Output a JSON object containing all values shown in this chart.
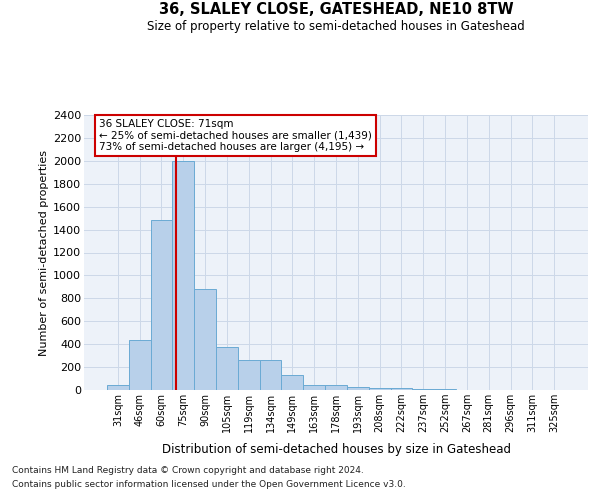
{
  "title1": "36, SLALEY CLOSE, GATESHEAD, NE10 8TW",
  "title2": "Size of property relative to semi-detached houses in Gateshead",
  "xlabel": "Distribution of semi-detached houses by size in Gateshead",
  "ylabel": "Number of semi-detached properties",
  "categories": [
    "31sqm",
    "46sqm",
    "60sqm",
    "75sqm",
    "90sqm",
    "105sqm",
    "119sqm",
    "134sqm",
    "149sqm",
    "163sqm",
    "178sqm",
    "193sqm",
    "208sqm",
    "222sqm",
    "237sqm",
    "252sqm",
    "267sqm",
    "281sqm",
    "296sqm",
    "311sqm",
    "325sqm"
  ],
  "values": [
    45,
    440,
    1480,
    2000,
    880,
    375,
    260,
    260,
    130,
    40,
    40,
    30,
    20,
    15,
    10,
    5,
    3,
    2,
    1,
    1,
    1
  ],
  "bar_color": "#b8d0ea",
  "bar_edge_color": "#6aaad4",
  "red_line_color": "#cc0000",
  "red_line_x": 2.67,
  "annotation_line1": "36 SLALEY CLOSE: 71sqm",
  "annotation_line2": "← 25% of semi-detached houses are smaller (1,439)",
  "annotation_line3": "73% of semi-detached houses are larger (4,195) →",
  "annotation_box_color": "#ffffff",
  "annotation_box_edge": "#cc0000",
  "ylim": [
    0,
    2400
  ],
  "yticks": [
    0,
    200,
    400,
    600,
    800,
    1000,
    1200,
    1400,
    1600,
    1800,
    2000,
    2200,
    2400
  ],
  "grid_color": "#ccd8e8",
  "background_color": "#edf2f9",
  "footnote1": "Contains HM Land Registry data © Crown copyright and database right 2024.",
  "footnote2": "Contains public sector information licensed under the Open Government Licence v3.0."
}
